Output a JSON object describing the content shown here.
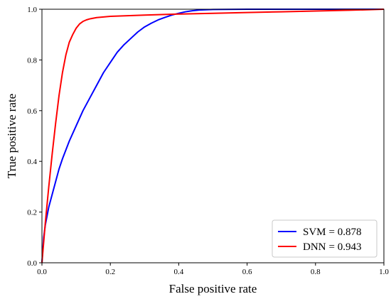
{
  "chart_data": {
    "type": "line",
    "title": "",
    "xlabel": "False positive rate",
    "ylabel": "True positive rate",
    "xlim": [
      0.0,
      1.0
    ],
    "ylim": [
      0.0,
      1.0
    ],
    "xticks": [
      "0.0",
      "0.2",
      "0.4",
      "0.6",
      "0.8",
      "1.0"
    ],
    "yticks": [
      "0.0",
      "0.2",
      "0.4",
      "0.6",
      "0.8",
      "1.0"
    ],
    "grid": false,
    "legend_position": "bottom-right",
    "series": [
      {
        "name": "SVM = 0.878",
        "color": "#0000ff",
        "x": [
          0.0,
          0.005,
          0.01,
          0.02,
          0.03,
          0.04,
          0.05,
          0.06,
          0.08,
          0.1,
          0.12,
          0.14,
          0.16,
          0.18,
          0.2,
          0.22,
          0.24,
          0.26,
          0.28,
          0.3,
          0.32,
          0.34,
          0.36,
          0.38,
          0.4,
          0.42,
          0.44,
          0.46,
          0.5,
          0.6,
          0.7,
          0.8,
          0.9,
          1.0
        ],
        "y": [
          0.0,
          0.1,
          0.15,
          0.22,
          0.27,
          0.32,
          0.37,
          0.41,
          0.48,
          0.54,
          0.6,
          0.65,
          0.7,
          0.75,
          0.79,
          0.83,
          0.86,
          0.885,
          0.91,
          0.93,
          0.945,
          0.958,
          0.968,
          0.977,
          0.984,
          0.99,
          0.994,
          0.997,
          0.999,
          1.0,
          1.0,
          1.0,
          1.0,
          1.0
        ]
      },
      {
        "name": "DNN = 0.943",
        "color": "#ff0000",
        "x": [
          0.0,
          0.005,
          0.01,
          0.02,
          0.03,
          0.04,
          0.05,
          0.06,
          0.07,
          0.08,
          0.09,
          0.1,
          0.11,
          0.12,
          0.13,
          0.14,
          0.16,
          0.2,
          0.3,
          0.4,
          0.5,
          0.6,
          0.7,
          0.8,
          0.9,
          1.0
        ],
        "y": [
          0.0,
          0.08,
          0.16,
          0.3,
          0.43,
          0.55,
          0.66,
          0.75,
          0.82,
          0.87,
          0.9,
          0.925,
          0.942,
          0.952,
          0.958,
          0.962,
          0.967,
          0.972,
          0.977,
          0.981,
          0.984,
          0.987,
          0.99,
          0.993,
          0.996,
          1.0
        ]
      }
    ],
    "legend": [
      {
        "label_a": "SVM",
        "label_b": "= 0.878",
        "color": "#0000ff"
      },
      {
        "label_a": "DNN",
        "label_b": "= 0.943",
        "color": "#ff0000"
      }
    ]
  }
}
